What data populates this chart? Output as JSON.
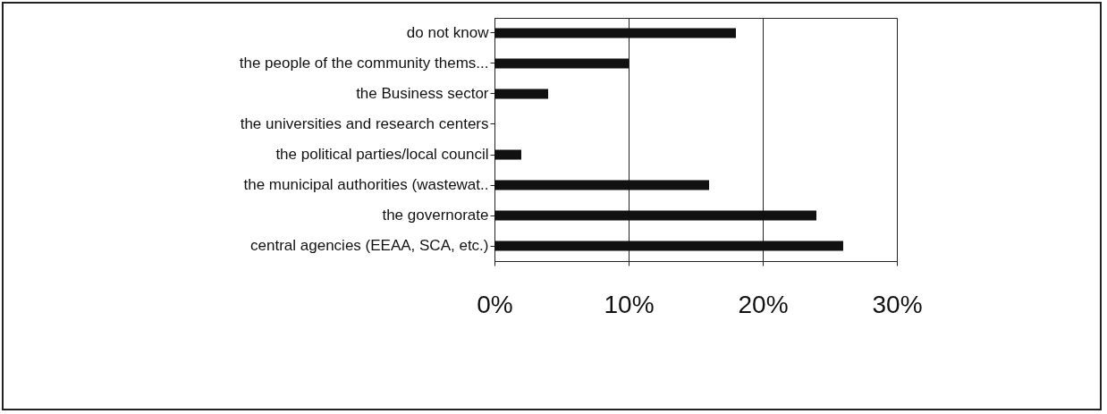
{
  "chart_data": {
    "type": "bar",
    "orientation": "horizontal",
    "categories": [
      "do not know",
      "the people of the community thems...",
      "the Business sector",
      "the universities and research centers",
      "the political parties/local council",
      "the municipal authorities (wastewat..",
      "the governorate",
      "central agencies (EEAA, SCA, etc.)"
    ],
    "values": [
      18,
      10,
      4,
      0,
      2,
      16,
      24,
      26
    ],
    "color": "#111111",
    "xlim": [
      0,
      30
    ],
    "xticks": [
      {
        "value": 0,
        "label": "0%"
      },
      {
        "value": 10,
        "label": "10%"
      },
      {
        "value": 20,
        "label": "20%"
      },
      {
        "value": 30,
        "label": "30%"
      }
    ],
    "grid": "x"
  }
}
